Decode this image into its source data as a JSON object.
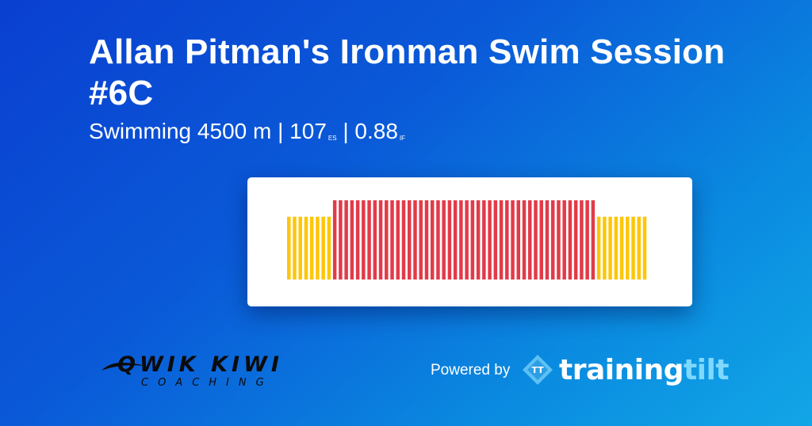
{
  "title": "Allan Pitman's Ironman Swim Session #6C",
  "subtitle": {
    "sport": "Swimming",
    "distance": "4500 m",
    "sep1": "|",
    "es_value": "107",
    "es_unit": "ES",
    "sep2": "|",
    "if_value": "0.88",
    "if_unit": "IF"
  },
  "workout": {
    "colors": {
      "warmup": "#fec609",
      "main": "#e23b49"
    },
    "intervals": [
      {
        "zone": "warmup",
        "level": 0.61
      },
      {
        "zone": "warmup",
        "level": 0.61
      },
      {
        "zone": "warmup",
        "level": 0.61
      },
      {
        "zone": "warmup",
        "level": 0.61
      },
      {
        "zone": "warmup",
        "level": 0.61
      },
      {
        "zone": "warmup",
        "level": 0.61
      },
      {
        "zone": "warmup",
        "level": 0.61
      },
      {
        "zone": "warmup",
        "level": 0.61
      },
      {
        "zone": "main",
        "level": 0.77
      },
      {
        "zone": "main",
        "level": 0.77
      },
      {
        "zone": "main",
        "level": 0.77
      },
      {
        "zone": "main",
        "level": 0.77
      },
      {
        "zone": "main",
        "level": 0.77
      },
      {
        "zone": "main",
        "level": 0.77
      },
      {
        "zone": "main",
        "level": 0.77
      },
      {
        "zone": "main",
        "level": 0.77
      },
      {
        "zone": "main",
        "level": 0.77
      },
      {
        "zone": "main",
        "level": 0.77
      },
      {
        "zone": "main",
        "level": 0.77
      },
      {
        "zone": "main",
        "level": 0.77
      },
      {
        "zone": "main",
        "level": 0.77
      },
      {
        "zone": "main",
        "level": 0.77
      },
      {
        "zone": "main",
        "level": 0.77
      },
      {
        "zone": "main",
        "level": 0.77
      },
      {
        "zone": "main",
        "level": 0.77
      },
      {
        "zone": "main",
        "level": 0.77
      },
      {
        "zone": "main",
        "level": 0.77
      },
      {
        "zone": "main",
        "level": 0.77
      },
      {
        "zone": "main",
        "level": 0.77
      },
      {
        "zone": "main",
        "level": 0.77
      },
      {
        "zone": "main",
        "level": 0.77
      },
      {
        "zone": "main",
        "level": 0.77
      },
      {
        "zone": "main",
        "level": 0.77
      },
      {
        "zone": "main",
        "level": 0.77
      },
      {
        "zone": "main",
        "level": 0.77
      },
      {
        "zone": "main",
        "level": 0.77
      },
      {
        "zone": "main",
        "level": 0.77
      },
      {
        "zone": "main",
        "level": 0.77
      },
      {
        "zone": "main",
        "level": 0.77
      },
      {
        "zone": "main",
        "level": 0.77
      },
      {
        "zone": "main",
        "level": 0.77
      },
      {
        "zone": "main",
        "level": 0.77
      },
      {
        "zone": "main",
        "level": 0.77
      },
      {
        "zone": "main",
        "level": 0.77
      },
      {
        "zone": "main",
        "level": 0.77
      },
      {
        "zone": "main",
        "level": 0.77
      },
      {
        "zone": "main",
        "level": 0.77
      },
      {
        "zone": "main",
        "level": 0.77
      },
      {
        "zone": "main",
        "level": 0.77
      },
      {
        "zone": "main",
        "level": 0.77
      },
      {
        "zone": "main",
        "level": 0.77
      },
      {
        "zone": "main",
        "level": 0.77
      },
      {
        "zone": "main",
        "level": 0.77
      },
      {
        "zone": "main",
        "level": 0.77
      },
      {
        "zone": "warmup",
        "level": 0.61
      },
      {
        "zone": "warmup",
        "level": 0.61
      },
      {
        "zone": "warmup",
        "level": 0.61
      },
      {
        "zone": "warmup",
        "level": 0.61
      },
      {
        "zone": "warmup",
        "level": 0.61
      },
      {
        "zone": "warmup",
        "level": 0.61
      },
      {
        "zone": "warmup",
        "level": 0.61
      },
      {
        "zone": "warmup",
        "level": 0.61
      },
      {
        "zone": "warmup",
        "level": 0.61
      }
    ]
  },
  "coach_logo": {
    "wordmark": "QWIK KIWI",
    "tagline": "COACHING"
  },
  "powered_by": "Powered by",
  "platform_logo": {
    "monogram": "TT",
    "word_main": "training",
    "word_accent": "tilt"
  }
}
